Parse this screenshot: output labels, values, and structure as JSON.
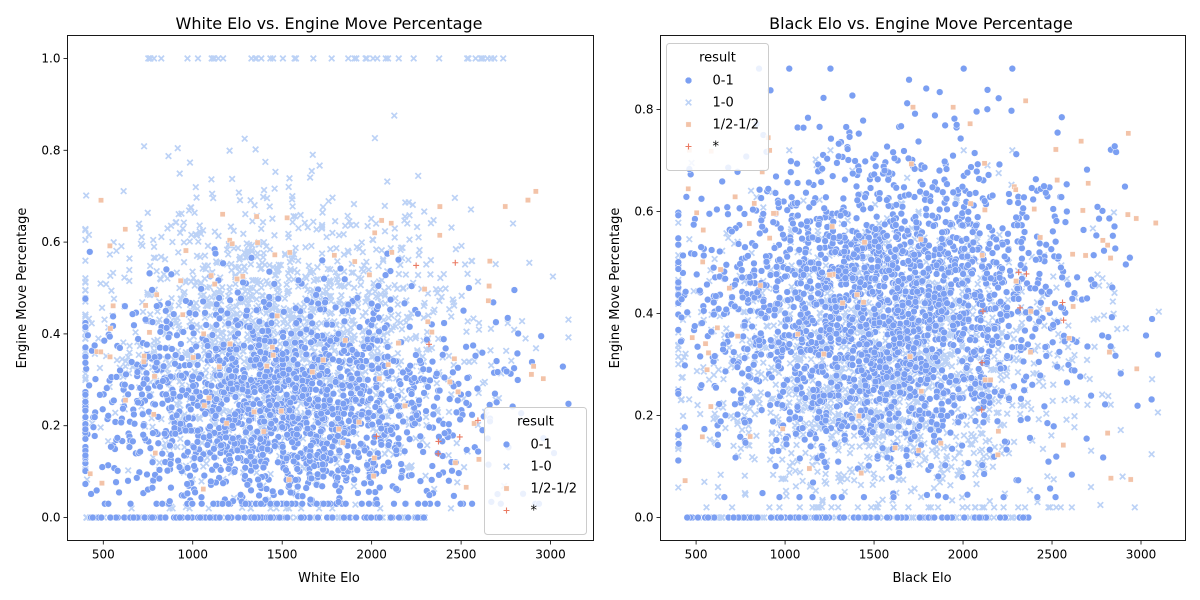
{
  "colors": {
    "0-1": "#7b9ff2",
    "1-0": "#bcd2f6",
    "1/2-1/2": "#f3c3a8",
    "*": "#ea7a62"
  },
  "legend": {
    "title": "result",
    "entries": [
      "0-1",
      "1-0",
      "1/2-1/2",
      "*"
    ]
  },
  "chart_data": [
    {
      "type": "scatter",
      "title": "White Elo vs. Engine Move Percentage",
      "xlabel": "White Elo",
      "ylabel": "Engine Move Percentage",
      "xlim": [
        300,
        3240
      ],
      "ylim": [
        -0.05,
        1.05
      ],
      "xticks": [
        500,
        1000,
        1500,
        2000,
        2500,
        3000
      ],
      "yticks": [
        0.0,
        0.2,
        0.4,
        0.6,
        0.8,
        1.0
      ],
      "ytick_labels": [
        "0.0",
        "0.2",
        "0.4",
        "0.6",
        "0.8",
        "1.0"
      ],
      "legend_position": "lower right",
      "series": [
        {
          "name": "0-1",
          "marker": "circle",
          "x_range": [
            400,
            3000
          ],
          "y_range": [
            0.0,
            0.77
          ],
          "density": "dense cluster centred near 1500-2200, y 0.05-0.5; row of points at 0.0 from 400 to 2300"
        },
        {
          "name": "1-0",
          "marker": "x",
          "x_range": [
            400,
            3100
          ],
          "y_range": [
            0.0,
            1.0
          ],
          "density": "dense cluster y 0.1-0.7; row of points at 1.0 from 750 to 2750; row at 0.0 from 400 to 2300"
        },
        {
          "name": "1/2-1/2",
          "marker": "square",
          "x_range": [
            400,
            3000
          ],
          "y_range": [
            0.05,
            0.72
          ],
          "density": "sparse"
        },
        {
          "name": "*",
          "marker": "plus",
          "x_range": [
            2000,
            2700
          ],
          "y_range": [
            0.1,
            0.6
          ],
          "density": "very sparse"
        }
      ]
    },
    {
      "type": "scatter",
      "title": "Black Elo vs. Engine Move Percentage",
      "xlabel": "Black Elo",
      "ylabel": "Engine Move Percentage",
      "xlim": [
        300,
        3250
      ],
      "ylim": [
        -0.045,
        0.945
      ],
      "xticks": [
        500,
        1000,
        1500,
        2000,
        2500,
        3000
      ],
      "yticks": [
        0.0,
        0.2,
        0.4,
        0.6,
        0.8
      ],
      "ytick_labels": [
        "0.0",
        "0.2",
        "0.4",
        "0.6",
        "0.8"
      ],
      "legend_position": "upper left",
      "series": [
        {
          "name": "0-1",
          "marker": "circle",
          "x_range": [
            400,
            3100
          ],
          "y_range": [
            0.0,
            0.88
          ],
          "density": "dense cluster y 0.1-0.7; row of points at 0.0 from 450 to 2400"
        },
        {
          "name": "1-0",
          "marker": "x",
          "x_range": [
            400,
            3000
          ],
          "y_range": [
            0.0,
            0.72
          ],
          "density": "dense cluster y 0.05-0.6; row at 0.0 from 450 to 2300"
        },
        {
          "name": "1/2-1/2",
          "marker": "square",
          "x_range": [
            400,
            3100
          ],
          "y_range": [
            0.05,
            0.82
          ],
          "density": "sparse"
        },
        {
          "name": "*",
          "marker": "plus",
          "x_range": [
            2000,
            2700
          ],
          "y_range": [
            0.2,
            0.55
          ],
          "density": "very sparse"
        }
      ]
    }
  ]
}
